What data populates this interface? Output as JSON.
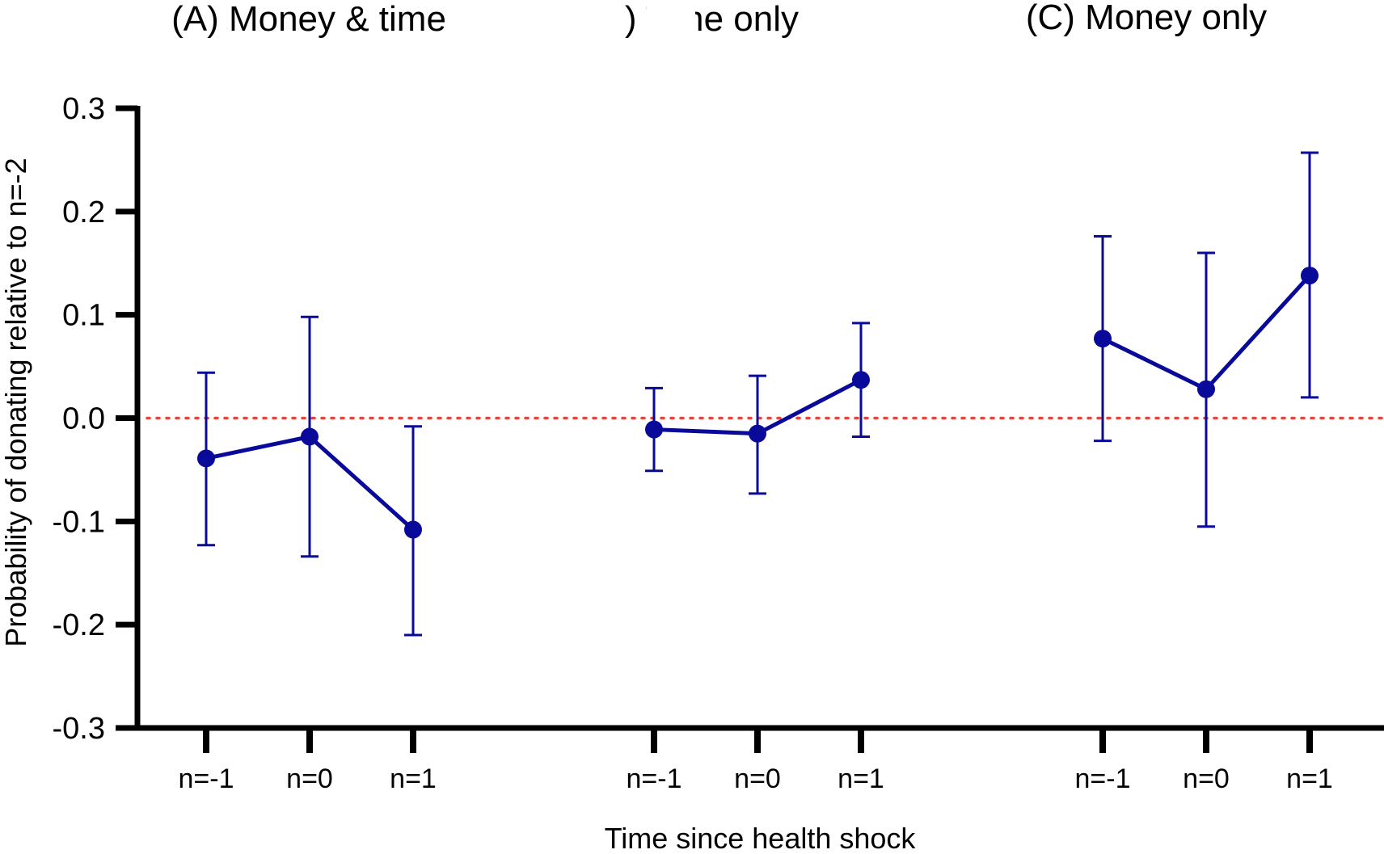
{
  "chart_data": {
    "type": "line",
    "xlabel": "Time since health shock",
    "ylabel": "Probability of donating relative to n=-2",
    "ylim": [
      -0.3,
      0.3
    ],
    "yticks": [
      "0.3",
      "0.2",
      "0.1",
      "0.0",
      "-0.1",
      "-0.2",
      "-0.3"
    ],
    "yticks_values": [
      0.3,
      0.2,
      0.1,
      0.0,
      -0.1,
      -0.2,
      -0.3
    ],
    "reference_line": {
      "y": 0.0,
      "style": "dotted",
      "color": "#e8453c"
    },
    "series_color": "#0a0a9a",
    "categories": [
      "n=-1",
      "n=0",
      "n=1"
    ],
    "panels": [
      {
        "title": "(A) Money & time",
        "values": [
          -0.039,
          -0.018,
          -0.108
        ],
        "ci_low": [
          -0.123,
          -0.134,
          -0.21
        ],
        "ci_high": [
          0.044,
          0.098,
          -0.008
        ]
      },
      {
        "title": ") Time only",
        "values": [
          -0.011,
          -0.015,
          0.037
        ],
        "ci_low": [
          -0.051,
          -0.073,
          -0.018
        ],
        "ci_high": [
          0.029,
          0.041,
          0.092
        ]
      },
      {
        "title": "(C) Money only",
        "values": [
          0.077,
          0.028,
          0.138
        ],
        "ci_low": [
          -0.022,
          -0.105,
          0.02
        ],
        "ci_high": [
          0.176,
          0.16,
          0.257
        ]
      }
    ]
  }
}
